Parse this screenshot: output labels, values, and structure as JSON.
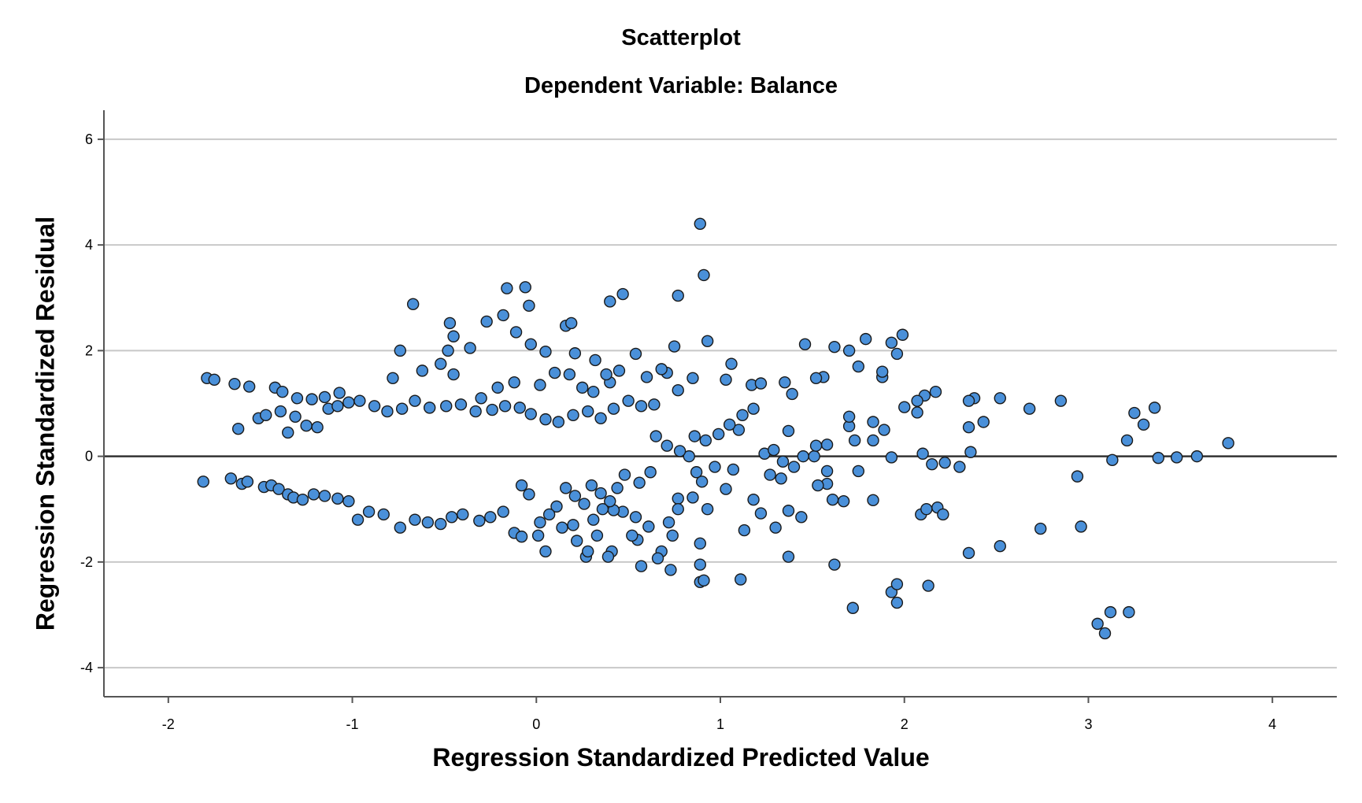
{
  "chart_data": {
    "type": "scatter",
    "title": "Scatterplot",
    "subtitle": "Dependent Variable: Balance",
    "xlabel": "Regression Standardized Predicted Value",
    "ylabel": "Regression Standardized Residual",
    "xlim": [
      -2.35,
      4.35
    ],
    "ylim": [
      -4.55,
      6.55
    ],
    "xticks": [
      -2,
      -1,
      0,
      1,
      2,
      3,
      4
    ],
    "yticks": [
      -4,
      -2,
      0,
      2,
      4,
      6
    ],
    "grid": "horizontal",
    "reference_line_y": 0,
    "colors": {
      "marker_fill": "#4a90d9",
      "marker_edge": "#1a1a1a",
      "grid": "#c8c8c8",
      "axis": "#555555",
      "refline": "#333333"
    },
    "series": [
      {
        "values": [
          [
            0.89,
            4.4
          ],
          [
            0.91,
            3.43
          ],
          [
            -0.16,
            3.18
          ],
          [
            -0.06,
            3.2
          ],
          [
            0.47,
            3.07
          ],
          [
            0.77,
            3.04
          ],
          [
            -0.67,
            2.88
          ],
          [
            0.4,
            2.93
          ],
          [
            -0.04,
            2.85
          ],
          [
            -0.18,
            2.67
          ],
          [
            -0.27,
            2.55
          ],
          [
            -0.47,
            2.52
          ],
          [
            0.16,
            2.47
          ],
          [
            0.19,
            2.52
          ],
          [
            -0.45,
            2.27
          ],
          [
            -0.11,
            2.35
          ],
          [
            0.93,
            2.18
          ],
          [
            1.46,
            2.12
          ],
          [
            1.79,
            2.22
          ],
          [
            1.93,
            2.15
          ],
          [
            1.99,
            2.3
          ],
          [
            1.62,
            2.07
          ],
          [
            1.7,
            2.0
          ],
          [
            1.96,
            1.94
          ],
          [
            0.75,
            2.08
          ],
          [
            -0.74,
            2.0
          ],
          [
            -0.48,
            2.0
          ],
          [
            -0.36,
            2.05
          ],
          [
            0.54,
            1.94
          ],
          [
            -0.03,
            2.12
          ],
          [
            0.05,
            1.98
          ],
          [
            0.21,
            1.95
          ],
          [
            -0.45,
            1.55
          ],
          [
            -0.52,
            1.75
          ],
          [
            0.32,
            1.82
          ],
          [
            1.06,
            1.75
          ],
          [
            1.88,
            1.5
          ],
          [
            1.88,
            1.6
          ],
          [
            1.56,
            1.5
          ],
          [
            1.52,
            1.48
          ],
          [
            1.75,
            1.7
          ],
          [
            1.03,
            1.45
          ],
          [
            1.17,
            1.35
          ],
          [
            1.22,
            1.38
          ],
          [
            1.35,
            1.4
          ],
          [
            1.39,
            1.18
          ],
          [
            0.85,
            1.48
          ],
          [
            0.71,
            1.58
          ],
          [
            -0.62,
            1.62
          ],
          [
            -0.78,
            1.48
          ],
          [
            -1.79,
            1.48
          ],
          [
            -1.75,
            1.45
          ],
          [
            -1.64,
            1.37
          ],
          [
            -1.56,
            1.32
          ],
          [
            -1.42,
            1.3
          ],
          [
            -1.38,
            1.22
          ],
          [
            -1.3,
            1.1
          ],
          [
            -1.22,
            1.08
          ],
          [
            -1.15,
            1.12
          ],
          [
            -1.07,
            1.2
          ],
          [
            2.11,
            1.15
          ],
          [
            2.17,
            1.22
          ],
          [
            2.38,
            1.1
          ],
          [
            2.52,
            1.1
          ],
          [
            2.85,
            1.05
          ],
          [
            2.68,
            0.9
          ],
          [
            3.36,
            0.92
          ],
          [
            3.25,
            0.82
          ],
          [
            3.3,
            0.6
          ],
          [
            3.21,
            0.3
          ],
          [
            3.76,
            0.25
          ],
          [
            3.59,
            0.0
          ],
          [
            3.48,
            -0.02
          ],
          [
            3.38,
            -0.03
          ],
          [
            3.13,
            -0.07
          ],
          [
            2.94,
            -0.38
          ],
          [
            2.96,
            -1.33
          ],
          [
            2.74,
            -1.37
          ],
          [
            2.52,
            -1.7
          ],
          [
            2.35,
            -1.83
          ],
          [
            2.43,
            0.65
          ],
          [
            2.35,
            0.55
          ],
          [
            2.35,
            1.05
          ],
          [
            2.36,
            0.08
          ],
          [
            2.3,
            -0.2
          ],
          [
            2.22,
            -0.12
          ],
          [
            2.15,
            -0.15
          ],
          [
            2.1,
            0.05
          ],
          [
            2.07,
            0.83
          ],
          [
            2.07,
            1.05
          ],
          [
            2.0,
            0.93
          ],
          [
            1.93,
            -0.02
          ],
          [
            1.89,
            0.5
          ],
          [
            1.83,
            0.65
          ],
          [
            1.83,
            0.3
          ],
          [
            1.83,
            -0.83
          ],
          [
            1.75,
            -0.28
          ],
          [
            1.7,
            0.57
          ],
          [
            1.7,
            0.75
          ],
          [
            1.73,
            0.3
          ],
          [
            1.67,
            -0.85
          ],
          [
            1.61,
            -0.82
          ],
          [
            1.58,
            -0.28
          ],
          [
            1.58,
            -0.52
          ],
          [
            1.58,
            0.22
          ],
          [
            1.53,
            -0.55
          ],
          [
            1.51,
            0.0
          ],
          [
            1.52,
            0.2
          ],
          [
            1.44,
            -1.15
          ],
          [
            1.37,
            -1.03
          ],
          [
            1.37,
            -1.9
          ],
          [
            1.37,
            0.48
          ],
          [
            1.33,
            -0.42
          ],
          [
            1.3,
            -1.35
          ],
          [
            1.27,
            -0.35
          ],
          [
            1.22,
            -1.08
          ],
          [
            1.18,
            -0.82
          ],
          [
            1.13,
            -1.4
          ],
          [
            1.11,
            -2.33
          ],
          [
            1.1,
            0.5
          ],
          [
            1.07,
            -0.25
          ],
          [
            1.03,
            -0.62
          ],
          [
            0.97,
            -0.2
          ],
          [
            0.93,
            -1.0
          ],
          [
            0.89,
            -1.65
          ],
          [
            0.89,
            -2.05
          ],
          [
            0.89,
            -2.38
          ],
          [
            0.91,
            -2.35
          ],
          [
            0.9,
            -0.48
          ],
          [
            0.87,
            -0.3
          ],
          [
            0.85,
            -0.78
          ],
          [
            0.83,
            0.0
          ],
          [
            0.77,
            -0.8
          ],
          [
            0.77,
            -1.0
          ],
          [
            0.74,
            -1.5
          ],
          [
            0.72,
            -1.25
          ],
          [
            0.73,
            -2.15
          ],
          [
            0.68,
            -1.8
          ],
          [
            0.66,
            -1.93
          ],
          [
            0.61,
            -1.33
          ],
          [
            0.57,
            -2.08
          ],
          [
            0.55,
            -1.58
          ],
          [
            0.52,
            -1.5
          ],
          [
            0.54,
            -1.15
          ],
          [
            1.62,
            -2.05
          ],
          [
            1.72,
            -2.87
          ],
          [
            1.93,
            -2.57
          ],
          [
            1.96,
            -2.77
          ],
          [
            1.96,
            -2.42
          ],
          [
            2.13,
            -2.45
          ],
          [
            2.09,
            -1.1
          ],
          [
            2.12,
            -1.0
          ],
          [
            2.18,
            -0.97
          ],
          [
            2.21,
            -1.1
          ],
          [
            3.05,
            -3.17
          ],
          [
            3.09,
            -3.35
          ],
          [
            3.12,
            -2.95
          ],
          [
            3.22,
            -2.95
          ],
          [
            0.47,
            -1.05
          ],
          [
            0.42,
            -1.02
          ],
          [
            0.41,
            -1.8
          ],
          [
            0.39,
            -1.9
          ],
          [
            0.33,
            -1.5
          ],
          [
            0.27,
            -1.9
          ],
          [
            0.28,
            -1.8
          ],
          [
            0.22,
            -1.6
          ],
          [
            0.2,
            -1.3
          ],
          [
            0.14,
            -1.35
          ],
          [
            0.05,
            -1.8
          ],
          [
            0.01,
            -1.5
          ],
          [
            -0.12,
            -1.45
          ],
          [
            -0.08,
            -1.52
          ],
          [
            0.35,
            -0.7
          ],
          [
            0.3,
            -0.55
          ],
          [
            -1.81,
            -0.48
          ],
          [
            -1.66,
            -0.42
          ],
          [
            -1.6,
            -0.52
          ],
          [
            -1.57,
            -0.48
          ],
          [
            -1.48,
            -0.58
          ],
          [
            -1.44,
            -0.55
          ],
          [
            -1.4,
            -0.62
          ],
          [
            -1.35,
            -0.72
          ],
          [
            -1.32,
            -0.78
          ],
          [
            -1.27,
            -0.82
          ],
          [
            -1.21,
            -0.72
          ],
          [
            -1.15,
            -0.75
          ],
          [
            -1.08,
            -0.8
          ],
          [
            -1.02,
            -0.85
          ],
          [
            -0.97,
            -1.2
          ],
          [
            -0.91,
            -1.05
          ],
          [
            -0.83,
            -1.1
          ],
          [
            -0.74,
            -1.35
          ],
          [
            -0.66,
            -1.2
          ],
          [
            -0.59,
            -1.25
          ],
          [
            -0.52,
            -1.28
          ],
          [
            -0.46,
            -1.15
          ],
          [
            -0.4,
            -1.1
          ],
          [
            -0.31,
            -1.22
          ],
          [
            -0.25,
            -1.15
          ],
          [
            -0.18,
            -1.05
          ],
          [
            -1.62,
            0.52
          ],
          [
            -1.51,
            0.72
          ],
          [
            -1.47,
            0.78
          ],
          [
            -1.39,
            0.85
          ],
          [
            -1.35,
            0.45
          ],
          [
            -1.31,
            0.75
          ],
          [
            -1.25,
            0.58
          ],
          [
            -1.19,
            0.55
          ],
          [
            -1.13,
            0.9
          ],
          [
            -1.08,
            0.95
          ],
          [
            -1.02,
            1.02
          ],
          [
            -0.96,
            1.05
          ],
          [
            -0.88,
            0.95
          ],
          [
            -0.81,
            0.85
          ],
          [
            -0.73,
            0.9
          ],
          [
            -0.66,
            1.05
          ],
          [
            -0.58,
            0.92
          ],
          [
            -0.49,
            0.95
          ],
          [
            -0.41,
            0.98
          ],
          [
            -0.33,
            0.85
          ],
          [
            -0.24,
            0.88
          ],
          [
            -0.17,
            0.95
          ],
          [
            -0.09,
            0.92
          ],
          [
            -0.03,
            0.8
          ],
          [
            0.05,
            0.7
          ],
          [
            0.12,
            0.65
          ],
          [
            0.2,
            0.78
          ],
          [
            0.28,
            0.85
          ],
          [
            0.35,
            0.72
          ],
          [
            0.42,
            0.9
          ],
          [
            0.5,
            1.05
          ],
          [
            0.57,
            0.95
          ],
          [
            0.64,
            0.98
          ],
          [
            0.31,
            1.22
          ],
          [
            0.4,
            1.4
          ],
          [
            0.45,
            1.62
          ],
          [
            0.38,
            1.55
          ],
          [
            0.25,
            1.3
          ],
          [
            0.18,
            1.55
          ],
          [
            0.1,
            1.58
          ],
          [
            0.02,
            1.35
          ],
          [
            -0.12,
            1.4
          ],
          [
            -0.21,
            1.3
          ],
          [
            -0.3,
            1.1
          ],
          [
            0.6,
            1.5
          ],
          [
            0.68,
            1.65
          ],
          [
            0.77,
            1.25
          ],
          [
            0.62,
            -0.3
          ],
          [
            0.56,
            -0.5
          ],
          [
            0.48,
            -0.35
          ],
          [
            0.44,
            -0.6
          ],
          [
            0.4,
            -0.85
          ],
          [
            0.36,
            -1.0
          ],
          [
            0.31,
            -1.2
          ],
          [
            0.26,
            -0.9
          ],
          [
            0.21,
            -0.75
          ],
          [
            0.16,
            -0.6
          ],
          [
            0.11,
            -0.95
          ],
          [
            0.07,
            -1.1
          ],
          [
            0.02,
            -1.25
          ],
          [
            -0.04,
            -0.72
          ],
          [
            -0.08,
            -0.55
          ],
          [
            0.65,
            0.38
          ],
          [
            0.71,
            0.2
          ],
          [
            0.78,
            0.1
          ],
          [
            0.86,
            0.38
          ],
          [
            0.92,
            0.3
          ],
          [
            0.99,
            0.42
          ],
          [
            1.05,
            0.6
          ],
          [
            1.12,
            0.78
          ],
          [
            1.18,
            0.9
          ],
          [
            1.24,
            0.05
          ],
          [
            1.29,
            0.12
          ],
          [
            1.34,
            -0.1
          ],
          [
            1.4,
            -0.2
          ],
          [
            1.45,
            0.0
          ]
        ]
      }
    ]
  }
}
